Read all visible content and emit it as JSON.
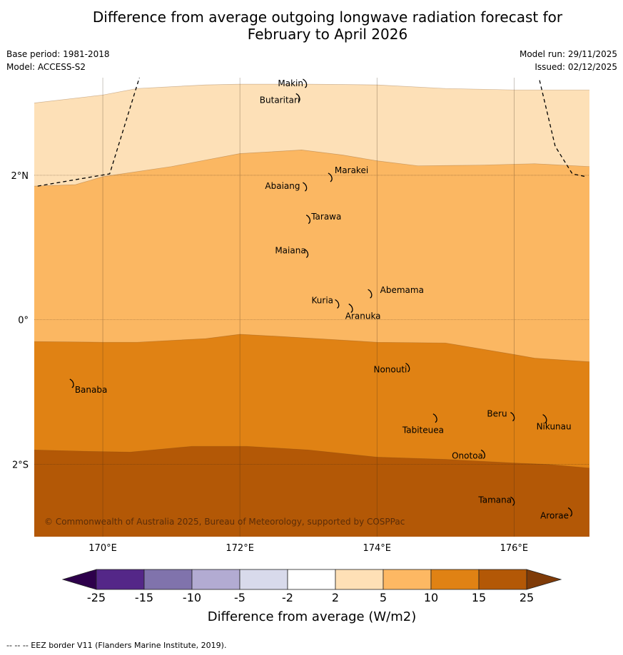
{
  "title": {
    "line1": "Difference from average outgoing longwave radiation forecast for",
    "line2": "February to April 2026"
  },
  "meta_left": {
    "base_period": "Base period: 1981-2018",
    "model": "Model: ACCESS-S2"
  },
  "meta_right": {
    "model_run": "Model run: 29/11/2025",
    "issued": "Issued: 02/12/2025"
  },
  "map": {
    "lon_range": [
      169,
      177.1
    ],
    "lat_range": [
      -3.0,
      3.35
    ],
    "lon_ticks": [
      {
        "value": 170,
        "label": "170°E"
      },
      {
        "value": 172,
        "label": "172°E"
      },
      {
        "value": 174,
        "label": "174°E"
      },
      {
        "value": 176,
        "label": "176°E"
      }
    ],
    "lat_ticks": [
      {
        "value": 2,
        "label": "2°N"
      },
      {
        "value": 0,
        "label": "0°"
      },
      {
        "value": -2,
        "label": "2°S"
      }
    ],
    "copyright": "© Commonwealth of Australia 2025, Bureau of Meteorology, supported by COSPPac",
    "bands": [
      {
        "name": "band-2-5",
        "color": "#fde0b7",
        "top": [
          [
            169,
            3.0
          ],
          [
            170,
            3.11
          ],
          [
            170.5,
            3.2
          ],
          [
            171.5,
            3.25
          ],
          [
            172,
            3.26
          ],
          [
            173,
            3.26
          ],
          [
            174,
            3.25
          ],
          [
            175,
            3.2
          ],
          [
            176,
            3.18
          ],
          [
            177.1,
            3.18
          ]
        ]
      },
      {
        "name": "band-5-10",
        "color": "#fbb762",
        "top": [
          [
            169,
            1.85
          ],
          [
            169.6,
            1.87
          ],
          [
            170,
            1.98
          ],
          [
            171,
            2.12
          ],
          [
            172,
            2.3
          ],
          [
            172.9,
            2.35
          ],
          [
            173.5,
            2.28
          ],
          [
            174,
            2.2
          ],
          [
            174.6,
            2.13
          ],
          [
            175.5,
            2.14
          ],
          [
            176.3,
            2.16
          ],
          [
            177.1,
            2.12
          ]
        ]
      },
      {
        "name": "band-10-15",
        "color": "#e08214",
        "top": [
          [
            169,
            -0.3
          ],
          [
            170,
            -0.31
          ],
          [
            170.5,
            -0.31
          ],
          [
            171.5,
            -0.26
          ],
          [
            172,
            -0.2
          ],
          [
            172.6,
            -0.23
          ],
          [
            173.3,
            -0.27
          ],
          [
            174,
            -0.31
          ],
          [
            175,
            -0.32
          ],
          [
            176,
            -0.48
          ],
          [
            176.3,
            -0.53
          ],
          [
            177.1,
            -0.58
          ]
        ]
      },
      {
        "name": "band-15-25",
        "color": "#b35806",
        "top": [
          [
            169,
            -1.8
          ],
          [
            169.8,
            -1.82
          ],
          [
            170.4,
            -1.83
          ],
          [
            171.3,
            -1.75
          ],
          [
            172.1,
            -1.75
          ],
          [
            173,
            -1.8
          ],
          [
            174,
            -1.9
          ],
          [
            175,
            -1.93
          ],
          [
            176,
            -1.98
          ],
          [
            176.5,
            -2.0
          ],
          [
            177.1,
            -2.05
          ]
        ]
      }
    ],
    "eez_lines": [
      [
        [
          169.05,
          1.85
        ],
        [
          170.1,
          2.02
        ],
        [
          170.55,
          3.4
        ]
      ],
      [
        [
          176.35,
          3.4
        ],
        [
          176.6,
          2.4
        ],
        [
          176.85,
          2.02
        ],
        [
          177.05,
          1.98
        ]
      ]
    ],
    "islands": [
      {
        "name": "Makin",
        "lon": 172.95,
        "lat": 3.28,
        "lx": -38,
        "ly": 5
      },
      {
        "name": "Butaritari",
        "lon": 172.85,
        "lat": 3.08,
        "lx": -54,
        "ly": 8
      },
      {
        "name": "Marakei",
        "lon": 173.32,
        "lat": 1.98,
        "lx": 6,
        "ly": -5
      },
      {
        "name": "Abaiang",
        "lon": 172.95,
        "lat": 1.85,
        "lx": -56,
        "ly": 4
      },
      {
        "name": "Tarawa",
        "lon": 173.0,
        "lat": 1.4,
        "lx": 4,
        "ly": 1
      },
      {
        "name": "Maiana",
        "lon": 172.97,
        "lat": 0.93,
        "lx": -44,
        "ly": 1
      },
      {
        "name": "Abemama",
        "lon": 173.9,
        "lat": 0.37,
        "lx": 14,
        "ly": 0
      },
      {
        "name": "Kuria",
        "lon": 173.42,
        "lat": 0.23,
        "lx": -36,
        "ly": 0
      },
      {
        "name": "Aranuka",
        "lon": 173.62,
        "lat": 0.17,
        "lx": -8,
        "ly": 16
      },
      {
        "name": "Nonouti",
        "lon": 174.45,
        "lat": -0.65,
        "lx": -48,
        "ly": 8
      },
      {
        "name": "Banaba",
        "lon": 169.55,
        "lat": -0.87,
        "lx": 4,
        "ly": 14
      },
      {
        "name": "Tabiteuea",
        "lon": 174.85,
        "lat": -1.35,
        "lx": -46,
        "ly": 22
      },
      {
        "name": "Beru",
        "lon": 175.98,
        "lat": -1.33,
        "lx": -36,
        "ly": 1
      },
      {
        "name": "Nikunau",
        "lon": 176.45,
        "lat": -1.36,
        "lx": -12,
        "ly": 16
      },
      {
        "name": "Onotoa",
        "lon": 175.55,
        "lat": -1.85,
        "lx": -44,
        "ly": 7
      },
      {
        "name": "Tamana",
        "lon": 175.98,
        "lat": -2.5,
        "lx": -48,
        "ly": 3
      },
      {
        "name": "Arorae",
        "lon": 176.82,
        "lat": -2.65,
        "lx": -42,
        "ly": 10
      }
    ]
  },
  "colorbar": {
    "title": "Difference from average (W/m2)",
    "boundaries": [
      -25,
      -15,
      -10,
      -5,
      -2,
      2,
      5,
      10,
      15,
      25
    ],
    "boundary_labels": [
      "-25",
      "-15",
      "-10",
      "-5",
      "-2",
      "2",
      "5",
      "10",
      "15",
      "25"
    ],
    "colors": [
      "#542788",
      "#8073ac",
      "#b2abd2",
      "#d8daeb",
      "#ffffff",
      "#fee0b6",
      "#fdb863",
      "#e08214",
      "#b35806"
    ],
    "under_color": "#2d004b",
    "over_color": "#7f3b08"
  },
  "footer": "--  --  -- EEZ border V11 (Flanders Marine Institute, 2019)."
}
